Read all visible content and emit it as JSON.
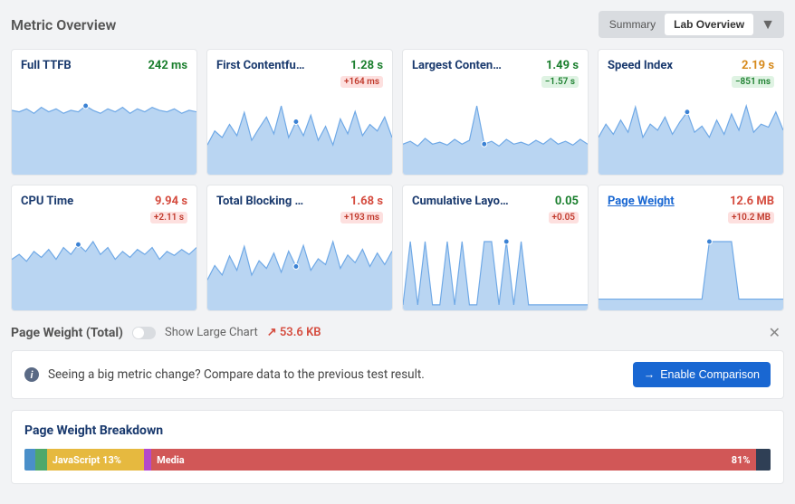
{
  "header": {
    "title": "Metric Overview",
    "tabs": [
      "Summary",
      "Lab Overview"
    ],
    "active_tab": 1
  },
  "colors": {
    "spark_fill": "#b9d5f2",
    "spark_stroke": "#6ea8e6",
    "spark_dot": "#3b82d4",
    "good": "#1b7f2e",
    "bad": "#d54c3f",
    "warn": "#d68a1c",
    "link": "#1967d2",
    "title": "#1a3a6e"
  },
  "cards": [
    {
      "title": "Full TTFB",
      "value": "242 ms",
      "value_color": "#1b7f2e",
      "delta": null,
      "delta_kind": null,
      "title_link": false,
      "spark": [
        42,
        41,
        43,
        40,
        44,
        41,
        43,
        40,
        42,
        41,
        45,
        42,
        40,
        43,
        41,
        44,
        40,
        43,
        41,
        44,
        42,
        41,
        43,
        40,
        42,
        41
      ],
      "dot_index": 10
    },
    {
      "title": "First Contentfu…",
      "value": "1.28 s",
      "value_color": "#1b7f2e",
      "delta": "+164 ms",
      "delta_kind": "neg",
      "title_link": false,
      "spark": [
        30,
        45,
        38,
        52,
        40,
        65,
        35,
        48,
        60,
        42,
        72,
        38,
        55,
        40,
        62,
        35,
        50,
        30,
        58,
        42,
        66,
        40,
        52,
        45,
        60,
        38
      ],
      "dot_index": 12
    },
    {
      "title": "Largest Conten…",
      "value": "1.49 s",
      "value_color": "#1b7f2e",
      "delta": "−1.57 s",
      "delta_kind": "pos",
      "title_link": false,
      "spark": [
        30,
        33,
        28,
        36,
        30,
        32,
        29,
        35,
        30,
        34,
        70,
        30,
        33,
        28,
        35,
        30,
        32,
        29,
        34,
        30,
        36,
        30,
        33,
        29,
        35,
        30
      ],
      "dot_index": 11
    },
    {
      "title": "Speed Index",
      "value": "2.19 s",
      "value_color": "#d68a1c",
      "delta": "−851 ms",
      "delta_kind": "pos",
      "title_link": false,
      "spark": [
        35,
        48,
        38,
        52,
        40,
        65,
        35,
        48,
        42,
        55,
        38,
        50,
        60,
        40,
        46,
        35,
        52,
        38,
        58,
        42,
        66,
        40,
        48,
        45,
        60,
        42
      ],
      "dot_index": 12
    },
    {
      "title": "CPU Time",
      "value": "9.94 s",
      "value_color": "#d54c3f",
      "delta": "+2.11 s",
      "delta_kind": "neg",
      "title_link": false,
      "spark": [
        50,
        55,
        48,
        58,
        52,
        60,
        50,
        62,
        55,
        65,
        58,
        68,
        55,
        62,
        50,
        58,
        52,
        60,
        55,
        62,
        50,
        58,
        54,
        60,
        55,
        62
      ],
      "dot_index": 9
    },
    {
      "title": "Total Blocking …",
      "value": "1.68 s",
      "value_color": "#d54c3f",
      "delta": "+193 ms",
      "delta_kind": "neg",
      "title_link": false,
      "spark": [
        30,
        45,
        35,
        55,
        40,
        65,
        35,
        50,
        42,
        58,
        38,
        60,
        44,
        66,
        40,
        52,
        46,
        70,
        42,
        56,
        48,
        62,
        44,
        58,
        46,
        60
      ],
      "dot_index": 12
    },
    {
      "title": "Cumulative Layo…",
      "value": "0.05",
      "value_color": "#1b7f2e",
      "delta": "+0.05",
      "delta_kind": "neg",
      "title_link": false,
      "spark": [
        5,
        90,
        5,
        90,
        5,
        5,
        90,
        5,
        90,
        5,
        5,
        90,
        90,
        5,
        90,
        5,
        90,
        5,
        5,
        5,
        5,
        5,
        5,
        5,
        5,
        5
      ],
      "dot_index": 14
    },
    {
      "title": "Page Weight",
      "value": "12.6 MB",
      "value_color": "#d54c3f",
      "delta": "+10.2 MB",
      "delta_kind": "neg",
      "title_link": true,
      "spark": [
        12,
        12,
        12,
        12,
        12,
        12,
        12,
        12,
        12,
        12,
        12,
        12,
        12,
        12,
        12,
        85,
        85,
        85,
        85,
        12,
        12,
        12,
        12,
        12,
        12,
        12
      ],
      "dot_index": 15
    }
  ],
  "page_weight_section": {
    "title": "Page Weight (Total)",
    "show_large_label": "Show Large Chart",
    "trend_value": "53.6 KB",
    "trend_arrow": "↗"
  },
  "banner": {
    "message": "Seeing a big metric change? Compare data to the previous test result.",
    "button": "Enable Comparison"
  },
  "breakdown": {
    "title": "Page Weight Breakdown",
    "segments": [
      {
        "label": "",
        "pct": 1.5,
        "color": "#4a8fc9"
      },
      {
        "label": "",
        "pct": 1.5,
        "color": "#4fa86b"
      },
      {
        "label": "JavaScript 13%",
        "pct": 13,
        "color": "#e6b93f"
      },
      {
        "label": "",
        "pct": 1,
        "color": "#b44acb"
      },
      {
        "label": "Media",
        "pct": 81,
        "color": "#d15757",
        "suffix": "81%"
      },
      {
        "label": "",
        "pct": 2,
        "color": "#2f3f55"
      }
    ]
  }
}
